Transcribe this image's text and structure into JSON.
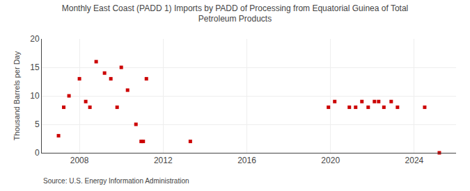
{
  "chart_data": {
    "type": "scatter",
    "title": "Monthly East Coast (PADD 1) Imports by PADD of Processing from Equatorial Guinea of Total\nPetroleum Products",
    "ylabel": "Thousand Barrels per Day",
    "annotations": [
      "Source: U.S. Energy Information Administration"
    ],
    "color": "#cc0000",
    "marker": "square",
    "grid": true,
    "xlim": [
      2006.2,
      2026.0
    ],
    "ylim": [
      0,
      20
    ],
    "xticks": [
      2008,
      2012,
      2016,
      2020,
      2024
    ],
    "yticks": [
      0,
      5,
      10,
      15,
      20
    ],
    "x": [
      2007.0,
      2007.25,
      2007.5,
      2008.0,
      2008.3,
      2008.5,
      2008.8,
      2009.2,
      2009.5,
      2009.8,
      2010.0,
      2010.3,
      2010.7,
      2010.95,
      2011.05,
      2011.2,
      2013.3,
      2019.9,
      2020.2,
      2020.9,
      2021.2,
      2021.5,
      2021.8,
      2022.1,
      2022.3,
      2022.55,
      2022.9,
      2023.2,
      2024.5,
      2025.2
    ],
    "values": [
      3,
      8,
      10,
      13,
      9,
      8,
      16,
      14,
      13,
      8,
      15,
      11,
      5,
      2,
      2,
      13,
      2,
      8,
      9,
      8,
      8,
      9,
      8,
      9,
      9,
      8,
      9,
      8,
      8,
      0
    ]
  }
}
